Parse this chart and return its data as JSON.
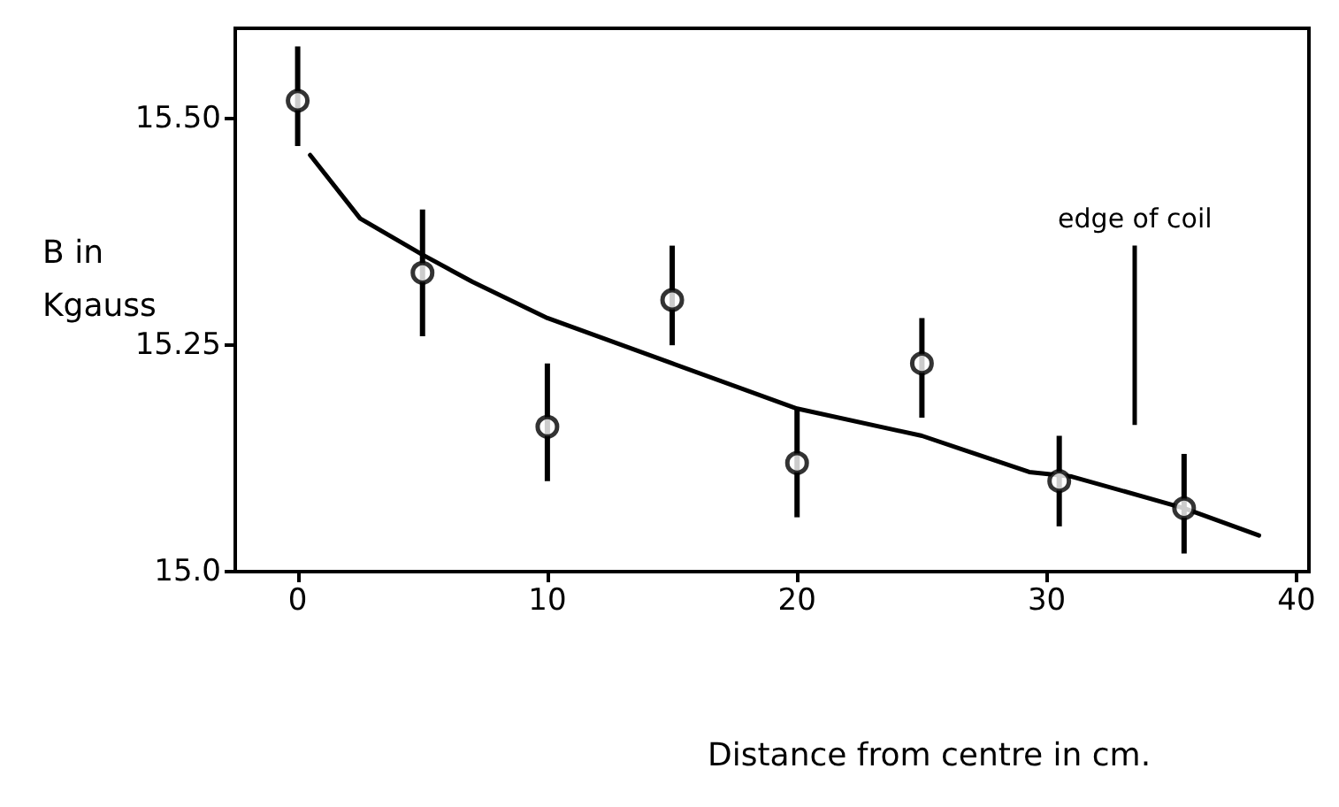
{
  "chart_data": {
    "type": "scatter",
    "xlabel": "Distance from centre in cm.",
    "ylabel": "B in\nKgauss",
    "xlim": [
      -2.5,
      40.5
    ],
    "xticks": [
      0,
      10,
      20,
      30,
      40
    ],
    "ylim": [
      15.0,
      15.6
    ],
    "yticks": [
      {
        "value": 15.0,
        "label": "15.0"
      },
      15.25,
      {
        "value": 15.5,
        "label": "15.50"
      }
    ],
    "grid": false,
    "marker": "circle",
    "series": [
      {
        "color": "#000000",
        "x": [
          0,
          5,
          10,
          15,
          20,
          25,
          30.5,
          35.5
        ],
        "values": [
          15.52,
          15.33,
          15.16,
          15.3,
          15.12,
          15.23,
          15.1,
          15.07
        ],
        "errors": [
          [
            15.47,
            15.58
          ],
          [
            15.26,
            15.4
          ],
          [
            15.1,
            15.23
          ],
          [
            15.25,
            15.36
          ],
          [
            15.06,
            15.18
          ],
          [
            15.17,
            15.28
          ],
          [
            15.05,
            15.15
          ],
          [
            15.02,
            15.13
          ]
        ]
      },
      {
        "type": "line",
        "color": "#000000",
        "line_style": "solid",
        "marker": "none",
        "x": [
          0.5,
          2.5,
          5,
          7,
          10,
          15,
          20,
          25,
          29.3,
          31,
          35.5,
          38.5
        ],
        "values": [
          15.46,
          15.39,
          15.35,
          15.32,
          15.28,
          15.23,
          15.18,
          15.15,
          15.11,
          15.105,
          15.07,
          15.04
        ]
      }
    ],
    "annotations": [
      "edge of coil"
    ]
  }
}
